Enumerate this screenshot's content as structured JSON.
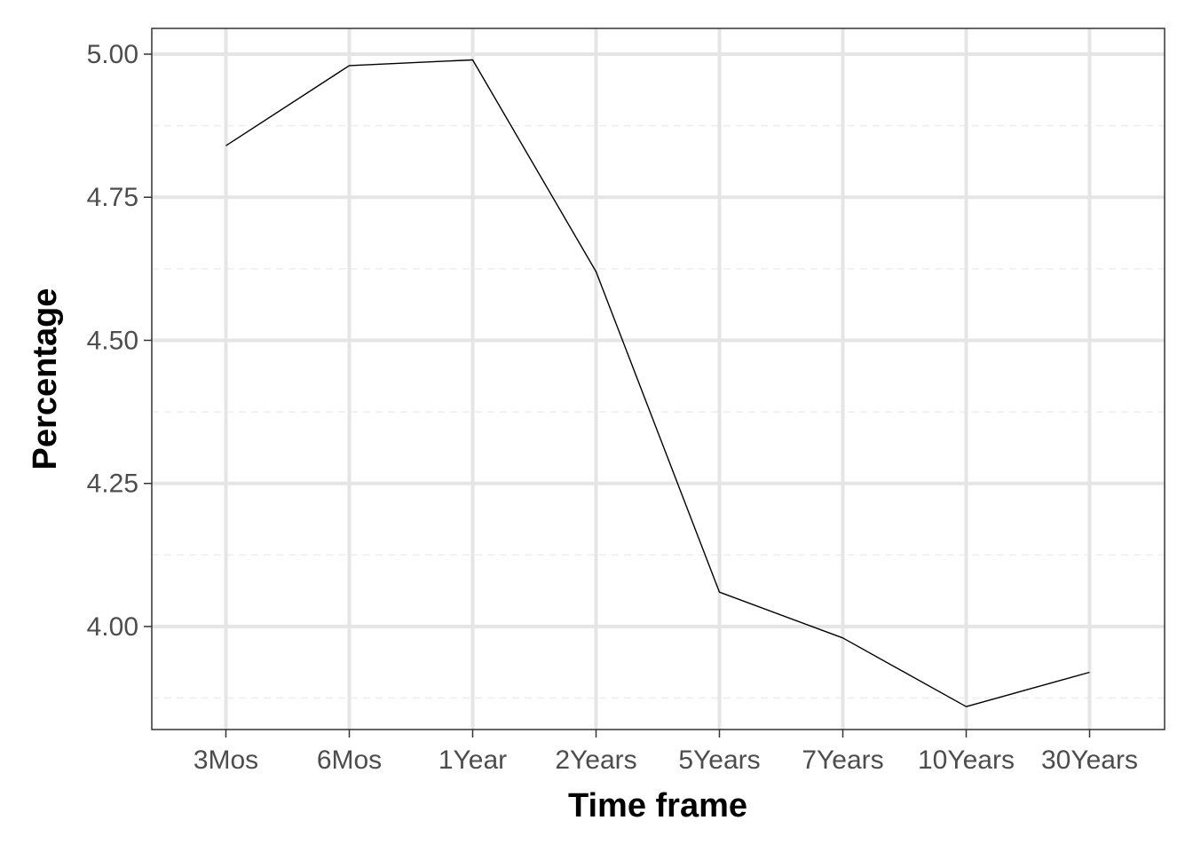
{
  "chart_data": {
    "type": "line",
    "title": "",
    "xlabel": "Time frame",
    "ylabel": "Percentage",
    "categories": [
      "3Mos",
      "6Mos",
      "1Year",
      "2Years",
      "5Years",
      "7Years",
      "10Years",
      "30Years"
    ],
    "series": [
      {
        "values": [
          4.84,
          4.98,
          4.99,
          4.62,
          4.06,
          3.98,
          3.86,
          3.92
        ]
      }
    ],
    "ylim": [
      3.82,
      5.045
    ],
    "yticks": [
      "4.00",
      "4.25",
      "4.50",
      "4.75",
      "5.00"
    ],
    "grid": true,
    "legend": "none",
    "colors": {
      "line": "#000000",
      "grid_major": "#e5e5e5",
      "grid_minor": "#eeeeee",
      "panel_border": "#333333"
    }
  }
}
